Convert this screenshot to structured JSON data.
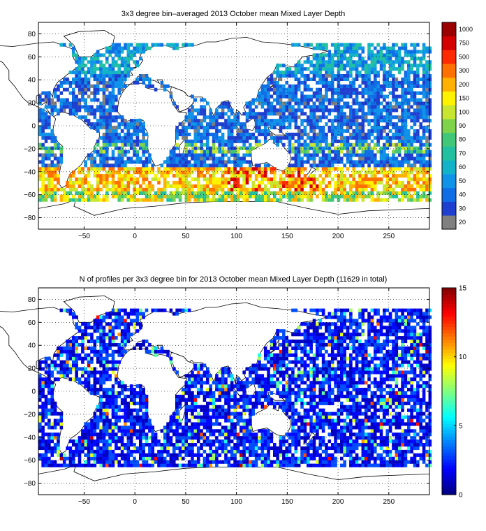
{
  "chart_data": [
    {
      "type": "heatmap",
      "title": "3x3 degree bin–averaged 2013 October mean Mixed Layer Depth",
      "xlabel": "",
      "ylabel": "",
      "xlim": [
        -95,
        290
      ],
      "ylim": [
        -90,
        90
      ],
      "xticks": [
        -50,
        0,
        50,
        100,
        150,
        200,
        250
      ],
      "xtick_labels": [
        "−50",
        "0",
        "50",
        "100",
        "150",
        "200",
        "250"
      ],
      "yticks": [
        80,
        60,
        40,
        20,
        0,
        -20,
        -40,
        -60,
        -80
      ],
      "ytick_labels": [
        "80",
        "60",
        "40",
        "20",
        "0",
        "−20",
        "−40",
        "−60",
        "−80"
      ],
      "grid": "dotted",
      "bin_size_deg": 3,
      "colorbar": {
        "scale": "categorical",
        "labels": [
          "20",
          "30",
          "40",
          "50",
          "60",
          "70",
          "80",
          "90",
          "100",
          "150",
          "200",
          "300",
          "500",
          "750",
          "1000"
        ],
        "colors": [
          "#808080",
          "#1f3fd0",
          "#0f6ee6",
          "#0f93e8",
          "#12b3c8",
          "#20c0a0",
          "#40c878",
          "#7ed34a",
          "#c8e630",
          "#fff200",
          "#ffb000",
          "#ff7000",
          "#ff2a00",
          "#d40000",
          "#9a0000"
        ]
      },
      "summary": {
        "dominant_range": "20–60 m across most ocean bins",
        "high_band": "150–500 m along the Southern Ocean near 40–55°S, peaking south of Australia (~100–170°E)",
        "missing": "grey bins (<20 m) scattered near the equatorial Pacific and Arabian Sea"
      }
    },
    {
      "type": "heatmap",
      "title": "N of profiles per 3x3 degree bin for 2013 October mean Mixed Layer Depth  (11629 in total)",
      "xlabel": "",
      "ylabel": "",
      "xlim": [
        -95,
        290
      ],
      "ylim": [
        -90,
        90
      ],
      "xticks": [
        -50,
        0,
        50,
        100,
        150,
        200,
        250
      ],
      "xtick_labels": [
        "−50",
        "0",
        "50",
        "100",
        "150",
        "200",
        "250"
      ],
      "yticks": [
        80,
        60,
        40,
        20,
        0,
        -20,
        -40,
        -60,
        -80
      ],
      "ytick_labels": [
        "80",
        "60",
        "40",
        "20",
        "0",
        "−20",
        "−40",
        "−60",
        "−80"
      ],
      "grid": "dotted",
      "bin_size_deg": 3,
      "total_profiles": 11629,
      "colorbar": {
        "scale": "linear",
        "range": [
          0,
          15
        ],
        "ticks": [
          0,
          5,
          10,
          15
        ],
        "tick_labels": [
          "0",
          "5",
          "10",
          "15"
        ]
      },
      "summary": {
        "dominant_range": "1–4 profiles per bin",
        "high_counts": "10–15 profiles near Mediterranean, Arabian Sea, Bay of Bengal, Kuroshio and western Atlantic"
      }
    }
  ]
}
